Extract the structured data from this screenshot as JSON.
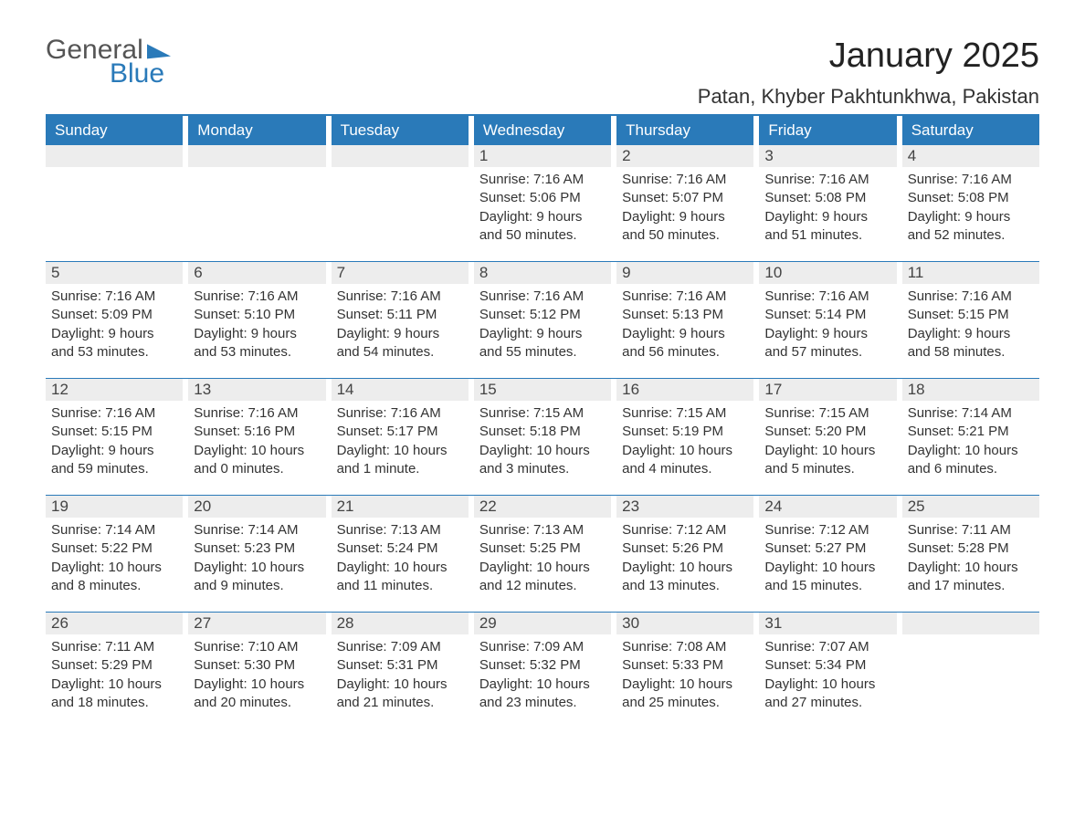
{
  "logo": {
    "word1": "General",
    "word2": "Blue"
  },
  "title": "January 2025",
  "location": "Patan, Khyber Pakhtunkhwa, Pakistan",
  "day_headers": [
    "Sunday",
    "Monday",
    "Tuesday",
    "Wednesday",
    "Thursday",
    "Friday",
    "Saturday"
  ],
  "colors": {
    "accent": "#2a7ab9",
    "stripe": "#ededed",
    "text": "#333333",
    "bg": "#ffffff"
  },
  "weeks": [
    [
      null,
      null,
      null,
      {
        "n": "1",
        "sunrise": "7:16 AM",
        "sunset": "5:06 PM",
        "daylight": "9 hours and 50 minutes."
      },
      {
        "n": "2",
        "sunrise": "7:16 AM",
        "sunset": "5:07 PM",
        "daylight": "9 hours and 50 minutes."
      },
      {
        "n": "3",
        "sunrise": "7:16 AM",
        "sunset": "5:08 PM",
        "daylight": "9 hours and 51 minutes."
      },
      {
        "n": "4",
        "sunrise": "7:16 AM",
        "sunset": "5:08 PM",
        "daylight": "9 hours and 52 minutes."
      }
    ],
    [
      {
        "n": "5",
        "sunrise": "7:16 AM",
        "sunset": "5:09 PM",
        "daylight": "9 hours and 53 minutes."
      },
      {
        "n": "6",
        "sunrise": "7:16 AM",
        "sunset": "5:10 PM",
        "daylight": "9 hours and 53 minutes."
      },
      {
        "n": "7",
        "sunrise": "7:16 AM",
        "sunset": "5:11 PM",
        "daylight": "9 hours and 54 minutes."
      },
      {
        "n": "8",
        "sunrise": "7:16 AM",
        "sunset": "5:12 PM",
        "daylight": "9 hours and 55 minutes."
      },
      {
        "n": "9",
        "sunrise": "7:16 AM",
        "sunset": "5:13 PM",
        "daylight": "9 hours and 56 minutes."
      },
      {
        "n": "10",
        "sunrise": "7:16 AM",
        "sunset": "5:14 PM",
        "daylight": "9 hours and 57 minutes."
      },
      {
        "n": "11",
        "sunrise": "7:16 AM",
        "sunset": "5:15 PM",
        "daylight": "9 hours and 58 minutes."
      }
    ],
    [
      {
        "n": "12",
        "sunrise": "7:16 AM",
        "sunset": "5:15 PM",
        "daylight": "9 hours and 59 minutes."
      },
      {
        "n": "13",
        "sunrise": "7:16 AM",
        "sunset": "5:16 PM",
        "daylight": "10 hours and 0 minutes."
      },
      {
        "n": "14",
        "sunrise": "7:16 AM",
        "sunset": "5:17 PM",
        "daylight": "10 hours and 1 minute."
      },
      {
        "n": "15",
        "sunrise": "7:15 AM",
        "sunset": "5:18 PM",
        "daylight": "10 hours and 3 minutes."
      },
      {
        "n": "16",
        "sunrise": "7:15 AM",
        "sunset": "5:19 PM",
        "daylight": "10 hours and 4 minutes."
      },
      {
        "n": "17",
        "sunrise": "7:15 AM",
        "sunset": "5:20 PM",
        "daylight": "10 hours and 5 minutes."
      },
      {
        "n": "18",
        "sunrise": "7:14 AM",
        "sunset": "5:21 PM",
        "daylight": "10 hours and 6 minutes."
      }
    ],
    [
      {
        "n": "19",
        "sunrise": "7:14 AM",
        "sunset": "5:22 PM",
        "daylight": "10 hours and 8 minutes."
      },
      {
        "n": "20",
        "sunrise": "7:14 AM",
        "sunset": "5:23 PM",
        "daylight": "10 hours and 9 minutes."
      },
      {
        "n": "21",
        "sunrise": "7:13 AM",
        "sunset": "5:24 PM",
        "daylight": "10 hours and 11 minutes."
      },
      {
        "n": "22",
        "sunrise": "7:13 AM",
        "sunset": "5:25 PM",
        "daylight": "10 hours and 12 minutes."
      },
      {
        "n": "23",
        "sunrise": "7:12 AM",
        "sunset": "5:26 PM",
        "daylight": "10 hours and 13 minutes."
      },
      {
        "n": "24",
        "sunrise": "7:12 AM",
        "sunset": "5:27 PM",
        "daylight": "10 hours and 15 minutes."
      },
      {
        "n": "25",
        "sunrise": "7:11 AM",
        "sunset": "5:28 PM",
        "daylight": "10 hours and 17 minutes."
      }
    ],
    [
      {
        "n": "26",
        "sunrise": "7:11 AM",
        "sunset": "5:29 PM",
        "daylight": "10 hours and 18 minutes."
      },
      {
        "n": "27",
        "sunrise": "7:10 AM",
        "sunset": "5:30 PM",
        "daylight": "10 hours and 20 minutes."
      },
      {
        "n": "28",
        "sunrise": "7:09 AM",
        "sunset": "5:31 PM",
        "daylight": "10 hours and 21 minutes."
      },
      {
        "n": "29",
        "sunrise": "7:09 AM",
        "sunset": "5:32 PM",
        "daylight": "10 hours and 23 minutes."
      },
      {
        "n": "30",
        "sunrise": "7:08 AM",
        "sunset": "5:33 PM",
        "daylight": "10 hours and 25 minutes."
      },
      {
        "n": "31",
        "sunrise": "7:07 AM",
        "sunset": "5:34 PM",
        "daylight": "10 hours and 27 minutes."
      },
      null
    ]
  ],
  "labels": {
    "sunrise": "Sunrise: ",
    "sunset": "Sunset: ",
    "daylight": "Daylight: "
  }
}
